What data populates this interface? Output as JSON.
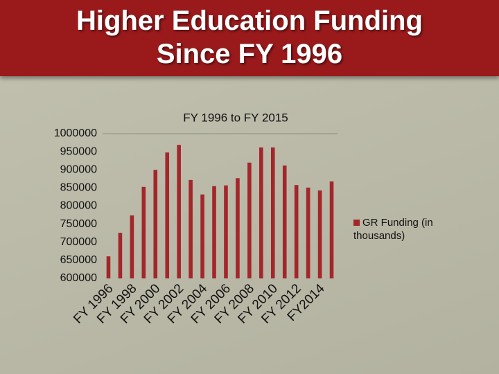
{
  "slide": {
    "title_lines": [
      "Higher Education Funding",
      "Since FY 1996"
    ]
  },
  "chart_data": {
    "type": "bar",
    "title": "FY 1996 to FY 2015",
    "categories": [
      "FY 1996",
      null,
      "FY 1998",
      null,
      "FY 2000",
      null,
      "FY 2002",
      null,
      "FY 2004",
      null,
      "FY 2006",
      null,
      "FY 2008",
      null,
      "FY 2010",
      null,
      "FY 2012",
      null,
      "FY2014",
      null
    ],
    "series": [
      {
        "name": "GR Funding (in thousands)",
        "color": "#a3262a",
        "values": [
          661000,
          726000,
          774000,
          853000,
          900000,
          948000,
          969000,
          872000,
          832000,
          855000,
          857000,
          877000,
          920000,
          962000,
          962000,
          912000,
          858000,
          851000,
          843000,
          868000
        ]
      }
    ],
    "ylim": [
      600000,
      1000000
    ],
    "yticks": [
      600000,
      650000,
      700000,
      750000,
      800000,
      850000,
      900000,
      950000,
      1000000
    ],
    "grid": false,
    "legend": "right"
  }
}
